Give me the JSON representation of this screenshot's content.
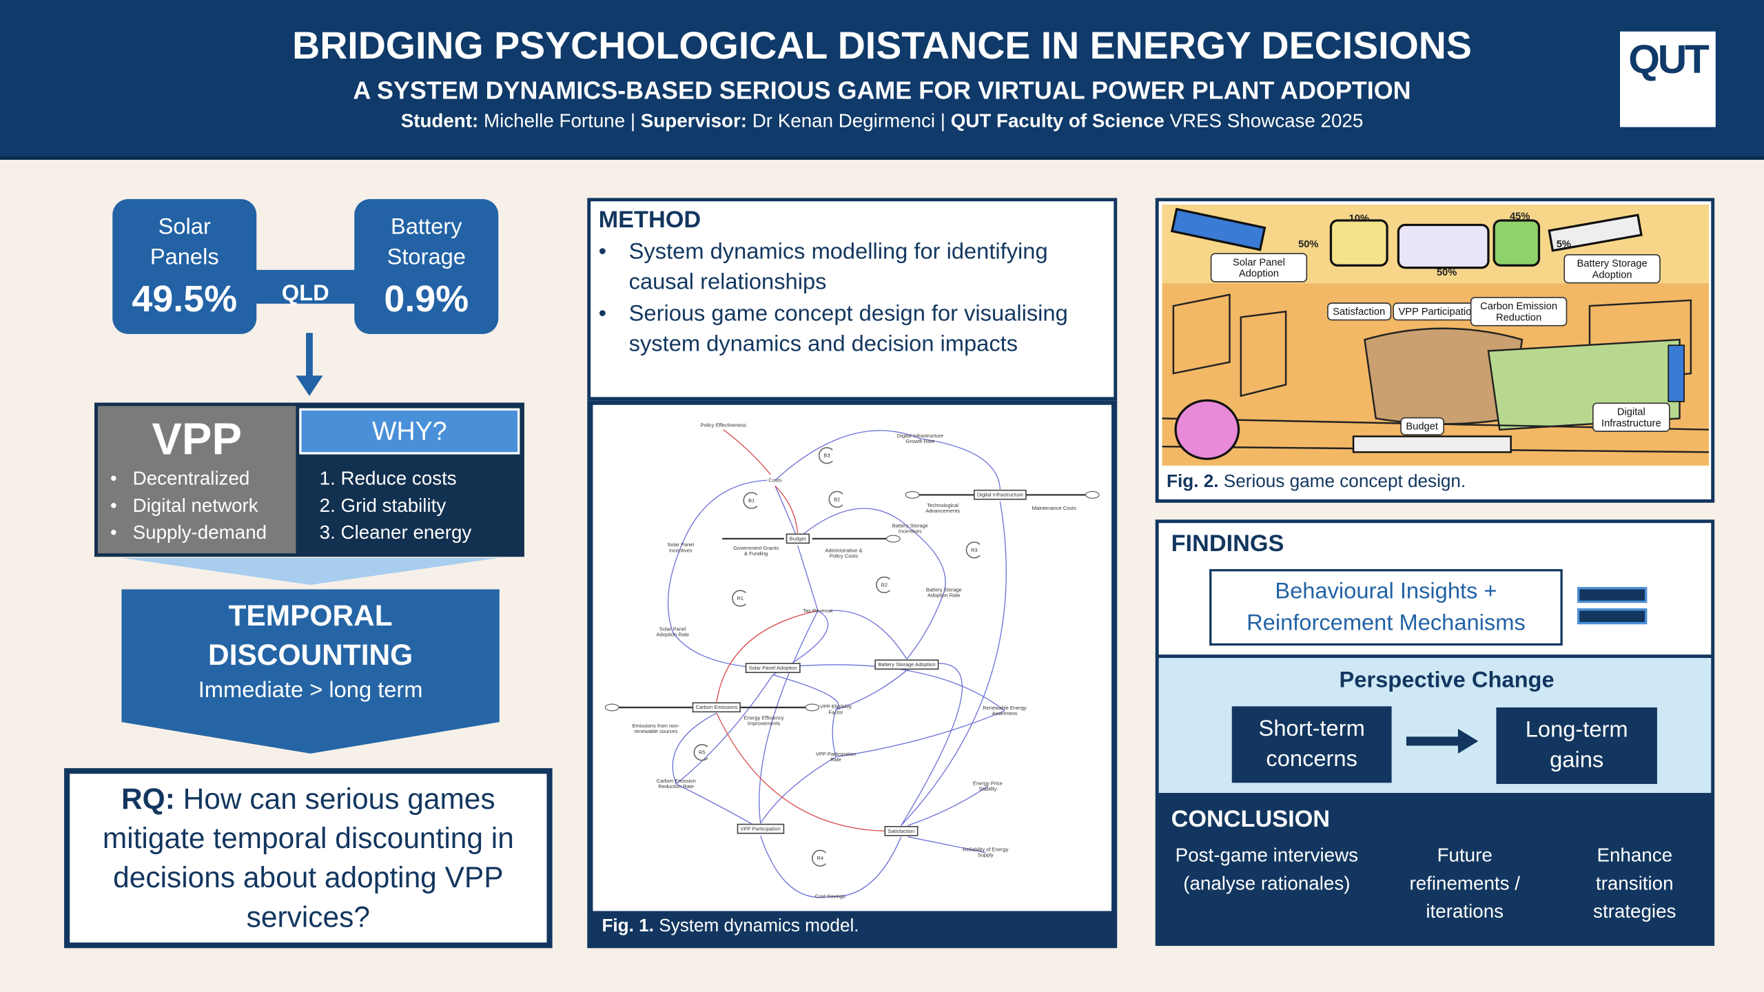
{
  "header": {
    "title": "BRIDGING PSYCHOLOGICAL DISTANCE IN ENERGY DECISIONS",
    "subtitle": "A SYSTEM DYNAMICS-BASED SERIOUS GAME FOR VIRTUAL POWER PLANT ADOPTION",
    "credits": [
      {
        "text": "Student:",
        "bold": true
      },
      {
        "text": " Michelle Fortune | ",
        "bold": false
      },
      {
        "text": "Supervisor:",
        "bold": true
      },
      {
        "text": " Dr Kenan Degirmenci | ",
        "bold": false
      },
      {
        "text": "QUT Faculty of Science",
        "bold": true
      },
      {
        "text": " VRES Showcase 2025",
        "bold": false
      }
    ],
    "logo": "QUT"
  },
  "stats": {
    "solar": {
      "label": "Solar Panels",
      "value": "49.5%"
    },
    "region": "QLD",
    "battery": {
      "label": "Battery Storage",
      "value": "0.9%"
    }
  },
  "vpp": {
    "title": "VPP",
    "features": [
      "Decentralized",
      "Digital network",
      "Supply-demand"
    ],
    "why_title": "WHY?",
    "reasons": [
      "1. Reduce costs",
      "2. Grid stability",
      "3. Cleaner energy"
    ]
  },
  "temporal": {
    "title": "TEMPORAL DISCOUNTING",
    "subtitle": "Immediate > long term"
  },
  "rq": {
    "label": "RQ:",
    "text": " How can serious games mitigate temporal discounting in decisions about adopting VPP services?"
  },
  "method": {
    "title": "METHOD",
    "items": [
      "System dynamics modelling for identifying causal relationships",
      "Serious game concept design for visualising system dynamics and decision impacts"
    ]
  },
  "fig1": {
    "caption_label": "Fig. 1.",
    "caption": " System dynamics model.",
    "nodes": [
      {
        "label": "Policy Effectiveness",
        "stock": false
      },
      {
        "label": "Digital Infrastructure Growth Rate",
        "stock": false
      },
      {
        "label": "Costs",
        "stock": false
      },
      {
        "label": "Digital Infrastructure",
        "stock": true
      },
      {
        "label": "Technological Advancements",
        "stock": false
      },
      {
        "label": "Maintenance Costs",
        "stock": false
      },
      {
        "label": "Solar Panel Incentives",
        "stock": false
      },
      {
        "label": "Government Grants & Funding",
        "stock": false
      },
      {
        "label": "Budget",
        "stock": true
      },
      {
        "label": "Administrative & Policy Costs",
        "stock": false
      },
      {
        "label": "Battery Storage Incentives",
        "stock": false
      },
      {
        "label": "Battery Storage Adoption Rate",
        "stock": false
      },
      {
        "label": "Tax Revenue",
        "stock": false
      },
      {
        "label": "Solar Panel Adoption Rate",
        "stock": false
      },
      {
        "label": "Solar Panel Adoption",
        "stock": true
      },
      {
        "label": "Battery Storage Adoption",
        "stock": true
      },
      {
        "label": "Carbon Emissions",
        "stock": true
      },
      {
        "label": "Emissions from non-renewable sources",
        "stock": false
      },
      {
        "label": "Energy Efficiency Improvements",
        "stock": false
      },
      {
        "label": "VPP Eligibility Factor",
        "stock": false
      },
      {
        "label": "Renewable Energy Awareness",
        "stock": false
      },
      {
        "label": "VPP Participation Rate",
        "stock": false
      },
      {
        "label": "Carbon Emission Reduction Rate",
        "stock": false
      },
      {
        "label": "Energy Price Stability",
        "stock": false
      },
      {
        "label": "VPP Participation",
        "stock": true
      },
      {
        "label": "Satisfaction",
        "stock": true
      },
      {
        "label": "Reliability of Energy Supply",
        "stock": false
      },
      {
        "label": "Cost Savings",
        "stock": false
      }
    ],
    "loops": [
      "B3",
      "B1",
      "B2",
      "R3",
      "R1",
      "R2",
      "R5",
      "R4"
    ]
  },
  "fig2": {
    "caption_label": "Fig. 2.",
    "caption": " Serious game concept design.",
    "labels": [
      "Solar Panel Adoption",
      "Satisfaction",
      "VPP Participation",
      "Carbon Emission Reduction",
      "Battery Storage Adoption",
      "Budget",
      "Digital Infrastructure"
    ],
    "percents": [
      "10%",
      "50%",
      "50%",
      "45%",
      "5%"
    ]
  },
  "findings": {
    "title": "FINDINGS",
    "insight": "Behavioural Insights + Reinforcement Mechanisms",
    "perspective": {
      "title": "Perspective Change",
      "from": "Short-term concerns",
      "to": "Long-term gains"
    }
  },
  "conclusion": {
    "title": "CONCLUSION",
    "items": [
      "Post-game interviews (analyse rationales)",
      "Future refinements / iterations",
      "Enhance transition strategies"
    ]
  }
}
